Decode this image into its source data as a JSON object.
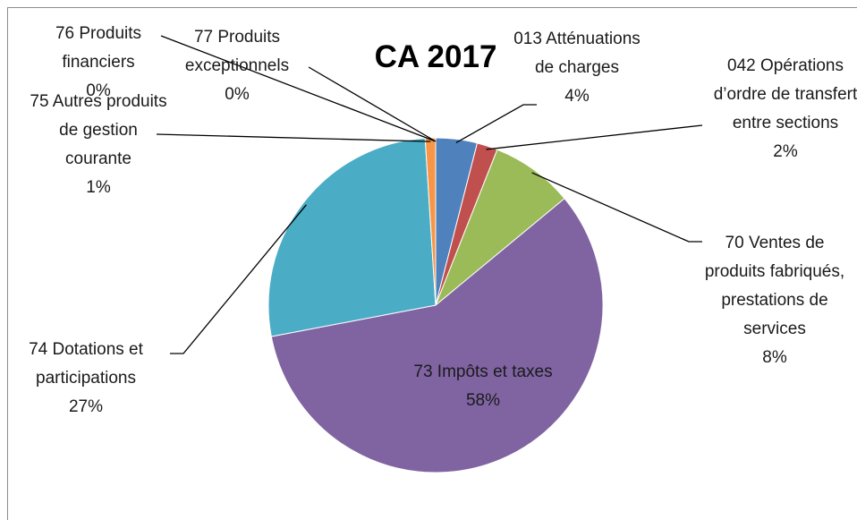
{
  "chart_data": {
    "type": "pie",
    "title": "CA 2017",
    "categories": [
      "013 Atténuations de charges",
      "042 Opérations d’ordre de transfert entre sections",
      "70 Ventes de produits fabriqués, prestations de services",
      "73 Impôts et taxes",
      "74 Dotations et participations",
      "75 Autres produits de gestion courante",
      "76 Produits financiers",
      "77 Produits exceptionnels"
    ],
    "values": [
      4,
      2,
      8,
      58,
      27,
      1,
      0,
      0
    ],
    "value_labels": [
      "4%",
      "2%",
      "8%",
      "58%",
      "27%",
      "1%",
      "0%",
      "0%"
    ],
    "colors": [
      "#4f81bd",
      "#c0504d",
      "#9bbb59",
      "#8064a2",
      "#4bacc6",
      "#f79646",
      "#2c4d75",
      "#772c2a"
    ]
  }
}
